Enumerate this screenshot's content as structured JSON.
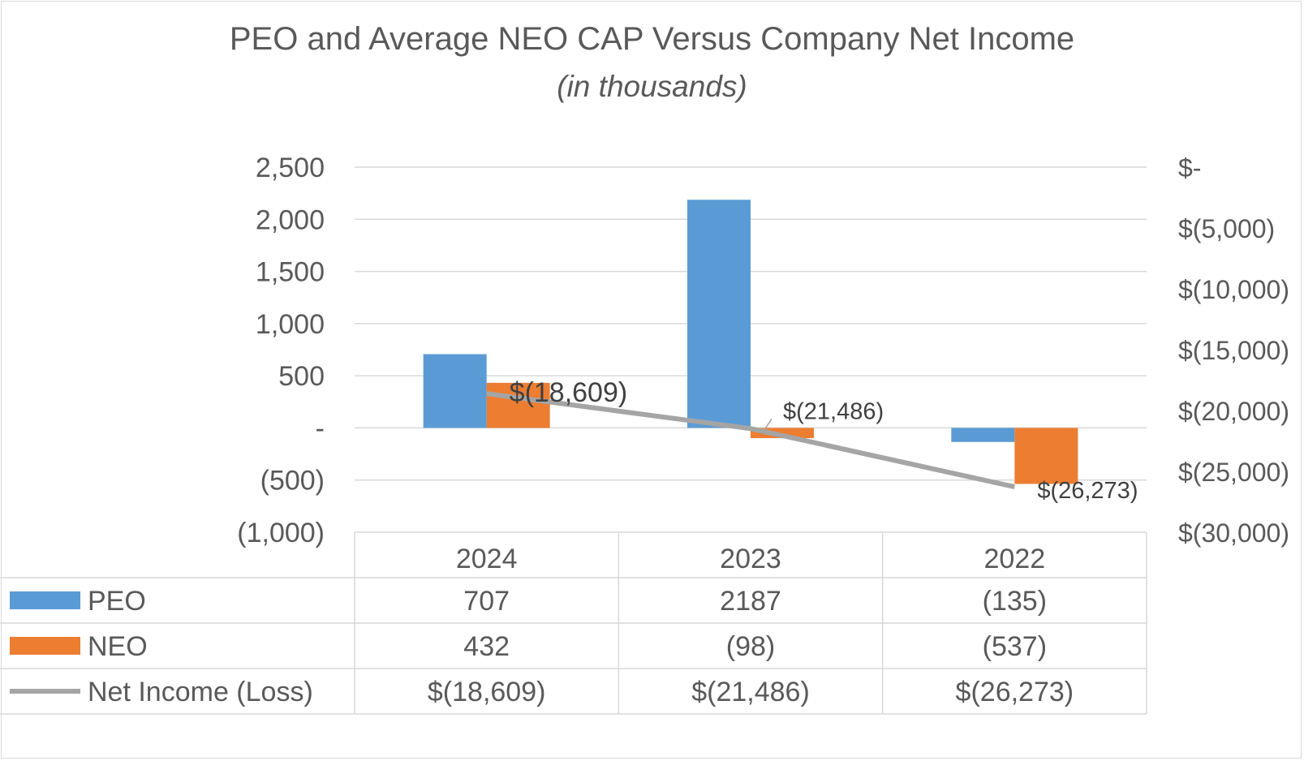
{
  "chart_data": {
    "type": "bar",
    "title": "PEO and Average NEO CAP Versus Company Net Income",
    "subtitle": "(in thousands)",
    "categories": [
      "2024",
      "2023",
      "2022"
    ],
    "series": [
      {
        "name": "PEO",
        "kind": "bar",
        "axis": "left",
        "color": "#5b9bd5",
        "values": [
          707,
          2187,
          -135
        ],
        "table_labels": [
          "707",
          "2187",
          "(135)"
        ]
      },
      {
        "name": "NEO",
        "kind": "bar",
        "axis": "left",
        "color": "#ed7d31",
        "values": [
          432,
          -98,
          -537
        ],
        "table_labels": [
          "432",
          "(98)",
          "(537)"
        ]
      },
      {
        "name": "Net Income (Loss)",
        "kind": "line",
        "axis": "right",
        "color": "#a5a5a5",
        "values": [
          -18609,
          -21486,
          -26273
        ],
        "data_labels": [
          "$(18,609)",
          "$(21,486)",
          "$(26,273)"
        ],
        "table_labels": [
          "$(18,609)",
          "$(21,486)",
          "$(26,273)"
        ]
      }
    ],
    "left_axis": {
      "ylim": [
        -1000,
        2500
      ],
      "ticks": [
        2500,
        2000,
        1500,
        1000,
        500,
        0,
        -500,
        -1000
      ],
      "tick_labels": [
        "2,500",
        "2,000",
        "1,500",
        "1,000",
        "500",
        "-",
        "(500)",
        "(1,000)"
      ]
    },
    "right_axis": {
      "ylim": [
        -30000,
        0
      ],
      "ticks": [
        0,
        -5000,
        -10000,
        -15000,
        -20000,
        -25000,
        -30000
      ],
      "tick_labels": [
        "$-",
        "$(5,000)",
        "$(10,000)",
        "$(15,000)",
        "$(20,000)",
        "$(25,000)",
        "$(30,000)"
      ]
    },
    "grid": true,
    "legend": "data-table"
  }
}
